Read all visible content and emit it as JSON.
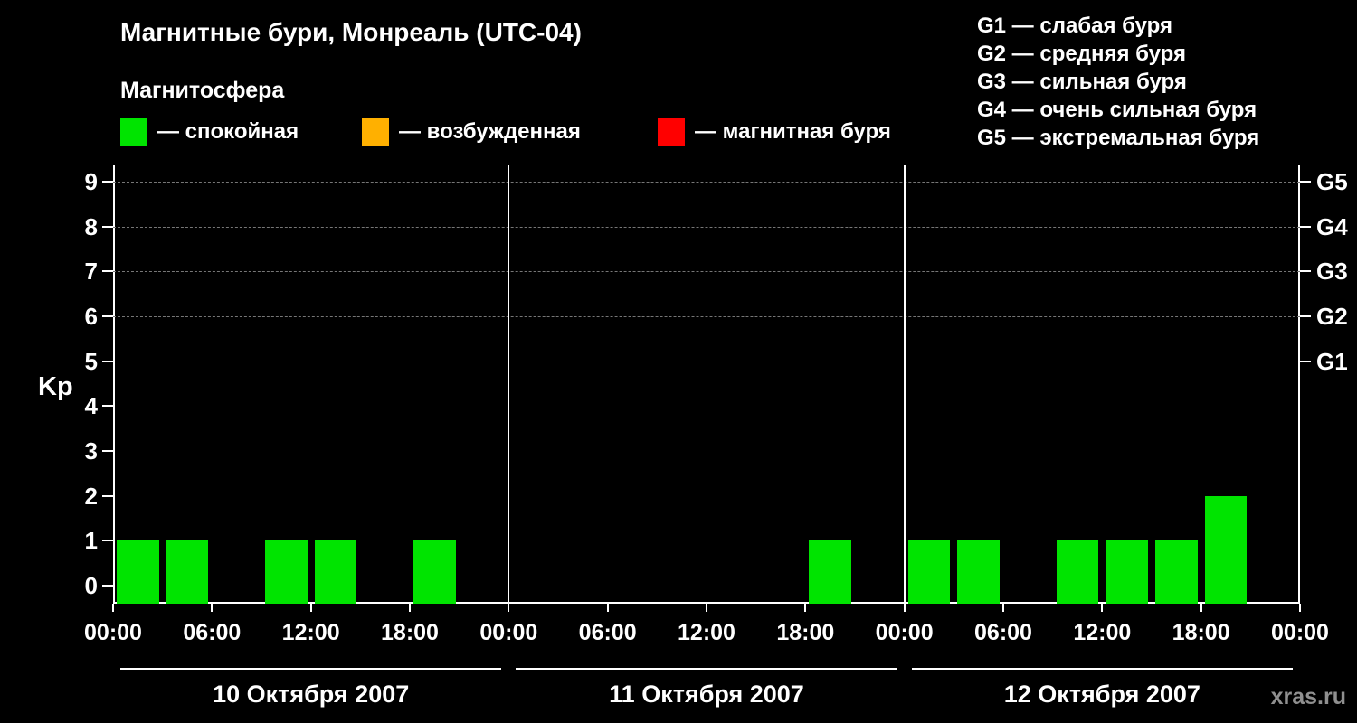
{
  "header": {
    "title": "Магнитные бури, Монреаль (UTC-04)",
    "subtitle": "Магнитосфера"
  },
  "legend": {
    "items": [
      {
        "label": "— спокойная",
        "color": "#00e400"
      },
      {
        "label": "— возбужденная",
        "color": "#ffb000"
      },
      {
        "label": "— магнитная буря",
        "color": "#ff0000"
      }
    ]
  },
  "g_legend": {
    "items": [
      "G1 — слабая буря",
      "G2 — средняя буря",
      "G3 — сильная буря",
      "G4 — очень сильная буря",
      "G5 — экстремальная буря"
    ]
  },
  "watermark": "xras.ru",
  "chart_data": {
    "type": "bar",
    "title": "Магнитные бури, Монреаль (UTC-04)",
    "ylabel": "Kp",
    "ylim": [
      0,
      9
    ],
    "grid": "dashed horizontal lines at Kp 5-9 only",
    "y_ticks": [
      0,
      1,
      2,
      3,
      4,
      5,
      6,
      7,
      8,
      9
    ],
    "g_levels": [
      {
        "kp": 5,
        "label": "G1"
      },
      {
        "kp": 6,
        "label": "G2"
      },
      {
        "kp": 7,
        "label": "G3"
      },
      {
        "kp": 8,
        "label": "G4"
      },
      {
        "kp": 9,
        "label": "G5"
      }
    ],
    "grid_levels": [
      5,
      6,
      7,
      8,
      9
    ],
    "x_tick_labels": [
      "00:00",
      "06:00",
      "12:00",
      "18:00",
      "00:00",
      "06:00",
      "12:00",
      "18:00",
      "00:00",
      "06:00",
      "12:00",
      "18:00",
      "00:00"
    ],
    "hours_per_slot": 3,
    "days": [
      {
        "date": "10 Октября 2007",
        "values": [
          1,
          1,
          0,
          1,
          1,
          0,
          1,
          0
        ]
      },
      {
        "date": "11 Октября 2007",
        "values": [
          0,
          0,
          0,
          0,
          0,
          0,
          1,
          0
        ]
      },
      {
        "date": "12 Октября 2007",
        "values": [
          1,
          1,
          0,
          1,
          1,
          1,
          2,
          0
        ]
      }
    ],
    "colors": {
      "quiet": "#00e400",
      "excited": "#ffb000",
      "storm": "#ff0000"
    },
    "kp_color_thresholds": {
      "excited_at": 5,
      "storm_at": 6
    }
  }
}
